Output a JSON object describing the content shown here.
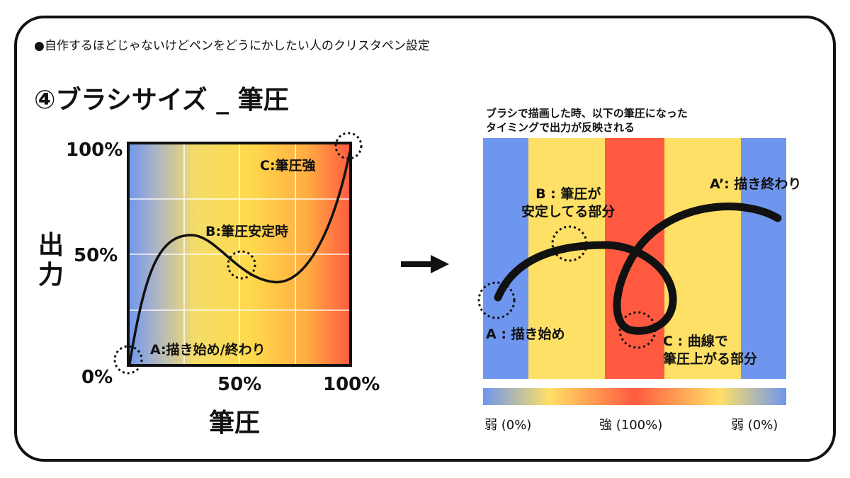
{
  "header": "●自作するほどじゃないけどペンをどうにかしたい人のクリスタペン設定",
  "section_title": "④ブラシサイズ _ 筆圧",
  "graph": {
    "y_label": "出力",
    "x_label": "筆圧",
    "y_ticks": [
      "100%",
      "50%",
      "0%"
    ],
    "x_ticks": [
      "50%",
      "100%"
    ],
    "points": {
      "a": "A:描き始め/終わり",
      "b": "B:筆圧安定時",
      "c": "C:筆圧強"
    },
    "gradient_colors": [
      "#6f96ef",
      "#ffe066",
      "#ff5a40"
    ]
  },
  "arrow_icon": "right-arrow-icon",
  "stroke_panel": {
    "caption_line1": "ブラシで描画した時、以下の筆圧になった",
    "caption_line2": "タイミングで出力が反映される",
    "labels": {
      "a_start": "A : 描き始め",
      "a_end": "A’: 描き終わり",
      "b_line1": "B : 筆圧が",
      "b_line2": "安定してる部分",
      "c_line1": "C : 曲線で",
      "c_line2": "筆圧上がる部分"
    },
    "band_colors": [
      "#6f96ef",
      "#ffe066",
      "#ff5a40",
      "#ffe066",
      "#6f96ef"
    ]
  },
  "scale": {
    "left": "弱 (0%)",
    "center": "強 (100%)",
    "right": "弱 (0%)"
  }
}
